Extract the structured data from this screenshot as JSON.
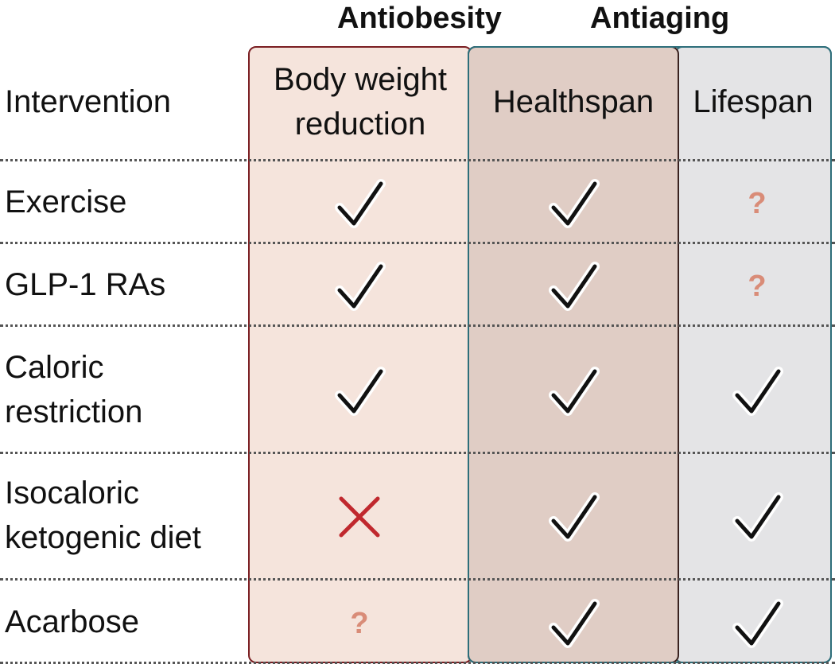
{
  "groups": {
    "antiobesity": "Antiobesity",
    "antiaging": "Antiaging"
  },
  "columns": {
    "intervention": "Intervention",
    "body_weight_line1": "Body weight",
    "body_weight_line2": "reduction",
    "healthspan": "Healthspan",
    "lifespan": "Lifespan"
  },
  "rows": [
    {
      "label_line1": "Exercise",
      "label_line2": "",
      "body_weight": "check",
      "healthspan": "check",
      "lifespan": "question"
    },
    {
      "label_line1": "GLP-1 RAs",
      "label_line2": "",
      "body_weight": "check",
      "healthspan": "check",
      "lifespan": "question"
    },
    {
      "label_line1": "Caloric",
      "label_line2": "restriction",
      "body_weight": "check",
      "healthspan": "check",
      "lifespan": "check"
    },
    {
      "label_line1": "Isocaloric",
      "label_line2": "ketogenic diet",
      "body_weight": "cross",
      "healthspan": "check",
      "lifespan": "check"
    },
    {
      "label_line1": "Acarbose",
      "label_line2": "",
      "body_weight": "question",
      "healthspan": "check",
      "lifespan": "check"
    }
  ],
  "question_mark": "?",
  "colors": {
    "antiobesity_fill": "#f5e4dc",
    "antiobesity_border": "#7a1e22",
    "healthspan_fill": "#e0cdc5",
    "lifespan_fill": "#e4e4e6",
    "antiaging_border": "#2d6e7a",
    "cross": "#c0282e",
    "question": "#d98c78"
  }
}
